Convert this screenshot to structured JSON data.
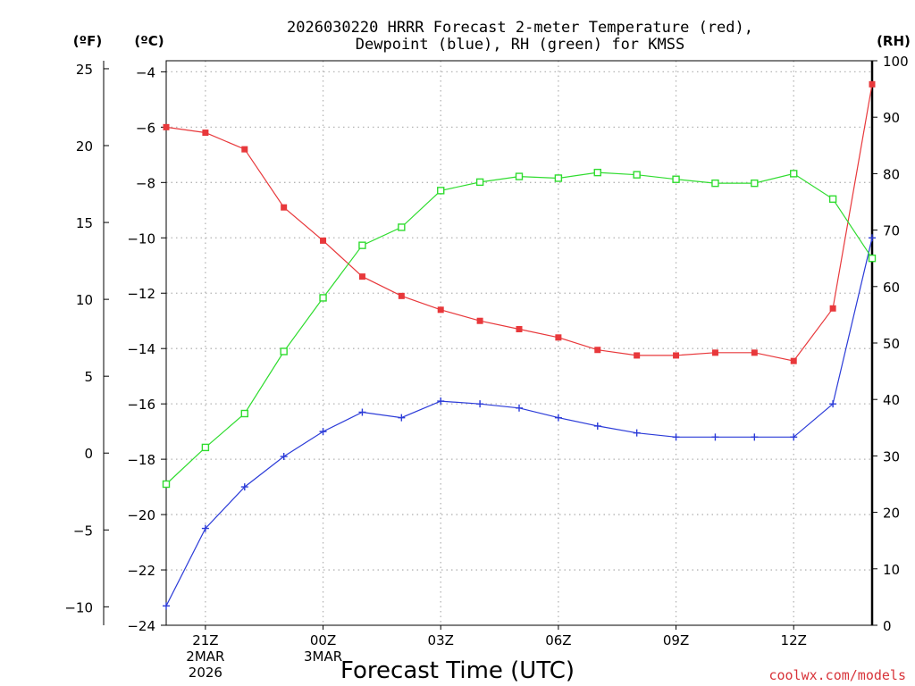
{
  "title_line1": "2026030220 HRRR Forecast 2-meter Temperature (red),",
  "title_line2": "Dewpoint (blue), RH (green) for KMSS",
  "unit_labels": {
    "fahrenheit": "(ºF)",
    "celsius": "(ºC)",
    "rh": "(RH)"
  },
  "credit": "coolwx.com/models",
  "colors": {
    "temperature": "#e8383b",
    "dewpoint": "#2b3bd8",
    "rh": "#2fdc2f",
    "credit": "#d8343a",
    "grid": "#b4b4b4"
  },
  "chart_data": {
    "type": "line",
    "title": "2026030220 HRRR Forecast 2-meter Temperature (red), Dewpoint (blue), RH (green) for KMSS",
    "xlabel": "Forecast Time (UTC)",
    "forecast_hours": [
      0,
      1,
      2,
      3,
      4,
      5,
      6,
      7,
      8,
      9,
      10,
      11,
      12,
      13,
      14,
      15,
      16,
      17,
      18
    ],
    "x_ticks": [
      {
        "hour": 1,
        "lines": [
          "21Z",
          "2MAR",
          "2026"
        ]
      },
      {
        "hour": 4,
        "lines": [
          "00Z",
          "3MAR"
        ]
      },
      {
        "hour": 7,
        "lines": [
          "03Z"
        ]
      },
      {
        "hour": 10,
        "lines": [
          "06Z"
        ]
      },
      {
        "hour": 13,
        "lines": [
          "09Z"
        ]
      },
      {
        "hour": 16,
        "lines": [
          "12Z"
        ]
      }
    ],
    "celsius_axis": {
      "label": "(ºC)",
      "range": [
        -24,
        -3.6
      ],
      "ticks": [
        -24,
        -22,
        -20,
        -18,
        -16,
        -14,
        -12,
        -10,
        -8,
        -6,
        -4
      ]
    },
    "fahrenheit_axis": {
      "label": "(ºF)",
      "range": [
        -11.2,
        25.52
      ],
      "ticks": [
        -10,
        -5,
        0,
        5,
        10,
        15,
        20,
        25
      ]
    },
    "rh_axis": {
      "label": "(RH)",
      "range": [
        0,
        100
      ],
      "ticks": [
        0,
        10,
        20,
        30,
        40,
        50,
        60,
        70,
        80,
        90,
        100
      ]
    },
    "series": [
      {
        "name": "Temperature",
        "axis": "celsius",
        "marker": "filled-square",
        "values": [
          -6.0,
          -6.2,
          -6.8,
          -8.9,
          -10.1,
          -11.4,
          -12.1,
          -12.6,
          -13.0,
          -13.3,
          -13.6,
          -14.05,
          -14.25,
          -14.25,
          -14.15,
          -14.15,
          -14.45,
          -12.55,
          -4.45
        ]
      },
      {
        "name": "Dewpoint",
        "axis": "celsius",
        "marker": "plus",
        "values": [
          -23.3,
          -20.5,
          -19.0,
          -17.9,
          -17.0,
          -16.3,
          -16.5,
          -15.9,
          -16.0,
          -16.15,
          -16.5,
          -16.8,
          -17.05,
          -17.2,
          -17.2,
          -17.2,
          -17.2,
          -16.0,
          -10.0
        ]
      },
      {
        "name": "RH",
        "axis": "rh",
        "marker": "open-square",
        "values": [
          25.0,
          31.5,
          37.5,
          48.5,
          58.0,
          67.3,
          70.5,
          77.0,
          78.5,
          79.5,
          79.2,
          80.2,
          79.8,
          79.0,
          78.3,
          78.3,
          80.0,
          75.5,
          65.0
        ]
      }
    ]
  }
}
